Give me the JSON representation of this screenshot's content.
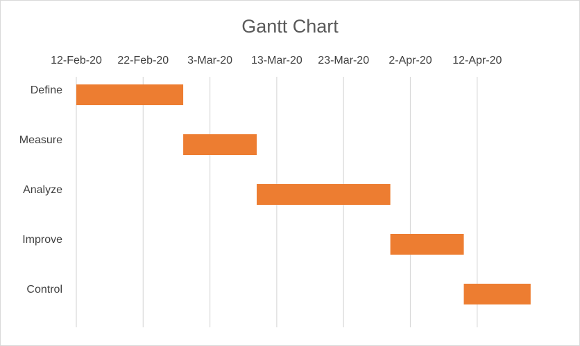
{
  "chart_data": {
    "type": "bar",
    "subtype": "gantt",
    "title": "Gantt Chart",
    "xlabel": "",
    "ylabel": "",
    "x_axis_position": "top",
    "x_type": "date",
    "xlim": [
      "2020-02-12",
      "2020-04-22"
    ],
    "x_ticks": [
      {
        "date": "2020-02-12",
        "label": "12-Feb-20"
      },
      {
        "date": "2020-02-22",
        "label": "22-Feb-20"
      },
      {
        "date": "2020-03-03",
        "label": "3-Mar-20"
      },
      {
        "date": "2020-03-13",
        "label": "13-Mar-20"
      },
      {
        "date": "2020-03-23",
        "label": "23-Mar-20"
      },
      {
        "date": "2020-04-02",
        "label": "2-Apr-20"
      },
      {
        "date": "2020-04-12",
        "label": "12-Apr-20"
      }
    ],
    "grid": true,
    "legend": "none",
    "categories": [
      "Define",
      "Measure",
      "Analyze",
      "Improve",
      "Control"
    ],
    "tasks": [
      {
        "name": "Define",
        "start": "2020-02-12",
        "end": "2020-02-28"
      },
      {
        "name": "Measure",
        "start": "2020-02-28",
        "end": "2020-03-10"
      },
      {
        "name": "Analyze",
        "start": "2020-03-10",
        "end": "2020-03-30"
      },
      {
        "name": "Improve",
        "start": "2020-03-30",
        "end": "2020-04-10"
      },
      {
        "name": "Control",
        "start": "2020-04-10",
        "end": "2020-04-20"
      }
    ],
    "colors": {
      "bar": "#ed7d31",
      "grid": "#d9d9d9",
      "title": "#595959",
      "text": "#404040"
    }
  }
}
